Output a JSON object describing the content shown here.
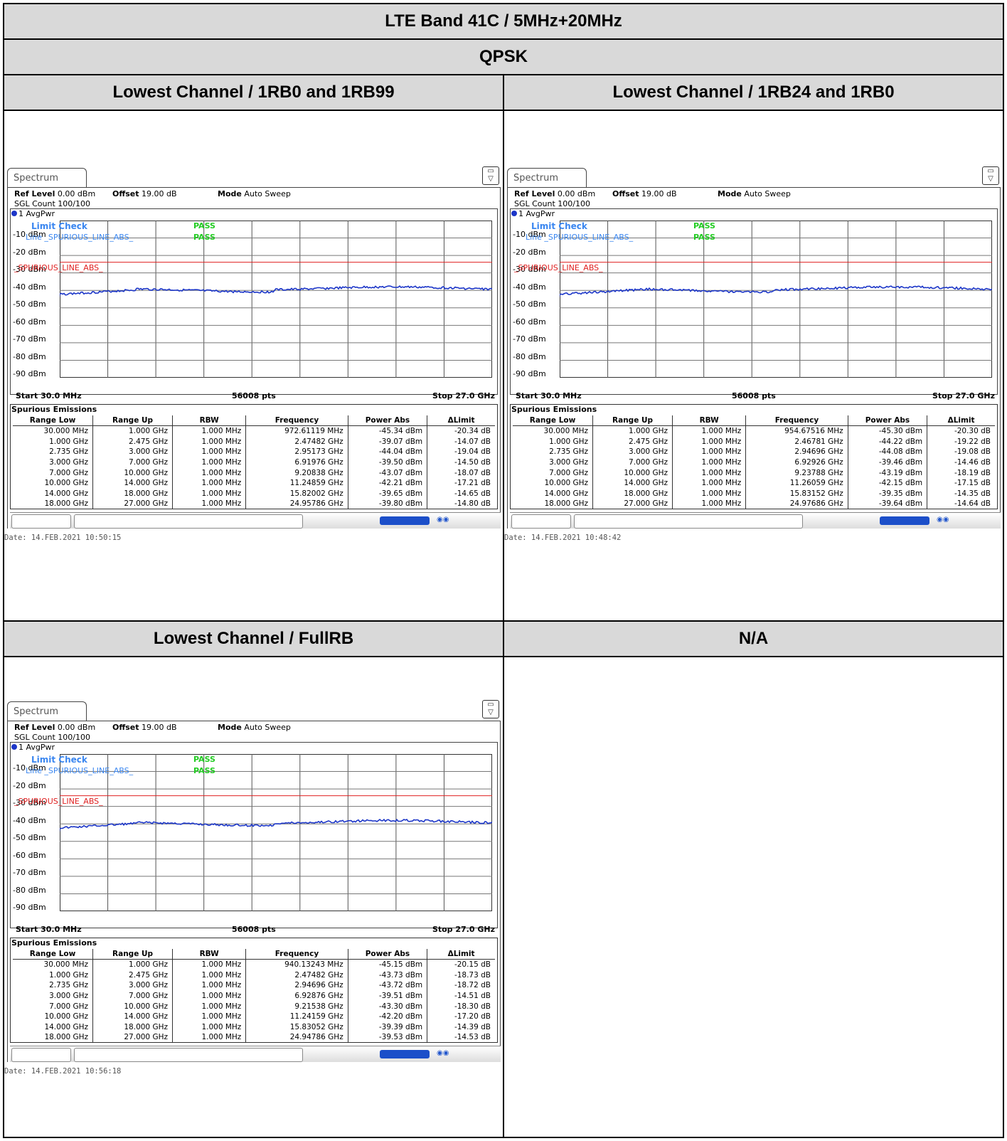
{
  "header": {
    "title": "LTE Band 41C / 5MHz+20MHz",
    "modulation": "QPSK"
  },
  "cells": [
    {
      "title": "Lowest Channel / 1RB0 and 1RB99",
      "screen": {
        "tab": "Spectrum",
        "ref_level_label": "Ref Level",
        "ref_level": "0.00 dBm",
        "offset_label": "Offset",
        "offset": "19.00 dB",
        "mode_label": "Mode",
        "mode": "Auto Sweep",
        "sgl_count": "SGL Count 100/100",
        "trace": "1 AvgPwr",
        "limit_check": "Limit Check",
        "limit_line": "Line _SPURIOUS_LINE_ABS_",
        "pass1": "PASS",
        "pass2": "PASS",
        "red_label": "_SPURIOUS_LINE_ABS_",
        "start": "Start 30.0 MHz",
        "pts": "56008 pts",
        "stop": "Stop 27.0 GHz",
        "table_title": "Spurious Emissions",
        "columns": [
          "Range Low",
          "Range Up",
          "RBW",
          "Frequency",
          "Power Abs",
          "ΔLimit"
        ],
        "rows": [
          [
            "30.000 MHz",
            "1.000 GHz",
            "1.000 MHz",
            "972.61119 MHz",
            "-45.34 dBm",
            "-20.34 dB"
          ],
          [
            "1.000 GHz",
            "2.475 GHz",
            "1.000 MHz",
            "2.47482 GHz",
            "-39.07 dBm",
            "-14.07 dB"
          ],
          [
            "2.735 GHz",
            "3.000 GHz",
            "1.000 MHz",
            "2.95173 GHz",
            "-44.04 dBm",
            "-19.04 dB"
          ],
          [
            "3.000 GHz",
            "7.000 GHz",
            "1.000 MHz",
            "6.91976 GHz",
            "-39.50 dBm",
            "-14.50 dB"
          ],
          [
            "7.000 GHz",
            "10.000 GHz",
            "1.000 MHz",
            "9.20838 GHz",
            "-43.07 dBm",
            "-18.07 dB"
          ],
          [
            "10.000 GHz",
            "14.000 GHz",
            "1.000 MHz",
            "11.24859 GHz",
            "-42.21 dBm",
            "-17.21 dB"
          ],
          [
            "14.000 GHz",
            "18.000 GHz",
            "1.000 MHz",
            "15.82002 GHz",
            "-39.65 dBm",
            "-14.65 dB"
          ],
          [
            "18.000 GHz",
            "27.000 GHz",
            "1.000 MHz",
            "24.95786 GHz",
            "-39.80 dBm",
            "-14.80 dB"
          ]
        ],
        "date": "Date: 14.FEB.2021  10:50:15"
      }
    },
    {
      "title": "Lowest Channel / 1RB24 and 1RB0",
      "screen": {
        "tab": "Spectrum",
        "ref_level_label": "Ref Level",
        "ref_level": "0.00 dBm",
        "offset_label": "Offset",
        "offset": "19.00 dB",
        "mode_label": "Mode",
        "mode": "Auto Sweep",
        "sgl_count": "SGL Count 100/100",
        "trace": "1 AvgPwr",
        "limit_check": "Limit Check",
        "limit_line": "Line _SPURIOUS_LINE_ABS_",
        "pass1": "PASS",
        "pass2": "PASS",
        "red_label": "_SPURIOUS_LINE_ABS_",
        "start": "Start 30.0 MHz",
        "pts": "56008 pts",
        "stop": "Stop 27.0 GHz",
        "table_title": "Spurious Emissions",
        "columns": [
          "Range Low",
          "Range Up",
          "RBW",
          "Frequency",
          "Power Abs",
          "ΔLimit"
        ],
        "rows": [
          [
            "30.000 MHz",
            "1.000 GHz",
            "1.000 MHz",
            "954.67516 MHz",
            "-45.30 dBm",
            "-20.30 dB"
          ],
          [
            "1.000 GHz",
            "2.475 GHz",
            "1.000 MHz",
            "2.46781 GHz",
            "-44.22 dBm",
            "-19.22 dB"
          ],
          [
            "2.735 GHz",
            "3.000 GHz",
            "1.000 MHz",
            "2.94696 GHz",
            "-44.08 dBm",
            "-19.08 dB"
          ],
          [
            "3.000 GHz",
            "7.000 GHz",
            "1.000 MHz",
            "6.92926 GHz",
            "-39.46 dBm",
            "-14.46 dB"
          ],
          [
            "7.000 GHz",
            "10.000 GHz",
            "1.000 MHz",
            "9.23788 GHz",
            "-43.19 dBm",
            "-18.19 dB"
          ],
          [
            "10.000 GHz",
            "14.000 GHz",
            "1.000 MHz",
            "11.26059 GHz",
            "-42.15 dBm",
            "-17.15 dB"
          ],
          [
            "14.000 GHz",
            "18.000 GHz",
            "1.000 MHz",
            "15.83152 GHz",
            "-39.35 dBm",
            "-14.35 dB"
          ],
          [
            "18.000 GHz",
            "27.000 GHz",
            "1.000 MHz",
            "24.97686 GHz",
            "-39.64 dBm",
            "-14.64 dB"
          ]
        ],
        "date": "Date: 14.FEB.2021  10:48:42"
      }
    },
    {
      "title": "Lowest Channel / FullRB",
      "screen": {
        "tab": "Spectrum",
        "ref_level_label": "Ref Level",
        "ref_level": "0.00 dBm",
        "offset_label": "Offset",
        "offset": "19.00 dB",
        "mode_label": "Mode",
        "mode": "Auto Sweep",
        "sgl_count": "SGL Count 100/100",
        "trace": "1 AvgPwr",
        "limit_check": "Limit Check",
        "limit_line": "Line _SPURIOUS_LINE_ABS_",
        "pass1": "PASS",
        "pass2": "PASS",
        "red_label": "_SPURIOUS_LINE_ABS_",
        "start": "Start 30.0 MHz",
        "pts": "56008 pts",
        "stop": "Stop 27.0 GHz",
        "table_title": "Spurious Emissions",
        "columns": [
          "Range Low",
          "Range Up",
          "RBW",
          "Frequency",
          "Power Abs",
          "ΔLimit"
        ],
        "rows": [
          [
            "30.000 MHz",
            "1.000 GHz",
            "1.000 MHz",
            "940.13243 MHz",
            "-45.15 dBm",
            "-20.15 dB"
          ],
          [
            "1.000 GHz",
            "2.475 GHz",
            "1.000 MHz",
            "2.47482 GHz",
            "-43.73 dBm",
            "-18.73 dB"
          ],
          [
            "2.735 GHz",
            "3.000 GHz",
            "1.000 MHz",
            "2.94696 GHz",
            "-43.72 dBm",
            "-18.72 dB"
          ],
          [
            "3.000 GHz",
            "7.000 GHz",
            "1.000 MHz",
            "6.92876 GHz",
            "-39.51 dBm",
            "-14.51 dB"
          ],
          [
            "7.000 GHz",
            "10.000 GHz",
            "1.000 MHz",
            "9.21538 GHz",
            "-43.30 dBm",
            "-18.30 dB"
          ],
          [
            "10.000 GHz",
            "14.000 GHz",
            "1.000 MHz",
            "11.24159 GHz",
            "-42.20 dBm",
            "-17.20 dB"
          ],
          [
            "14.000 GHz",
            "18.000 GHz",
            "1.000 MHz",
            "15.83052 GHz",
            "-39.39 dBm",
            "-14.39 dB"
          ],
          [
            "18.000 GHz",
            "27.000 GHz",
            "1.000 MHz",
            "24.94786 GHz",
            "-39.53 dBm",
            "-14.53 dB"
          ]
        ],
        "date": "Date: 14.FEB.2021  10:56:18"
      }
    },
    {
      "title": "N/A"
    }
  ],
  "y_axis_labels": [
    "-10 dBm",
    "-20 dBm",
    "-30 dBm",
    "-40 dBm",
    "-50 dBm",
    "-60 dBm",
    "-70 dBm",
    "-80 dBm",
    "-90 dBm"
  ],
  "chart_data": {
    "type": "line",
    "ylim": [
      -100,
      0
    ],
    "limit_line_dbm": -25,
    "trace_color": "#1c36c8",
    "limit_color": "#e02020"
  }
}
